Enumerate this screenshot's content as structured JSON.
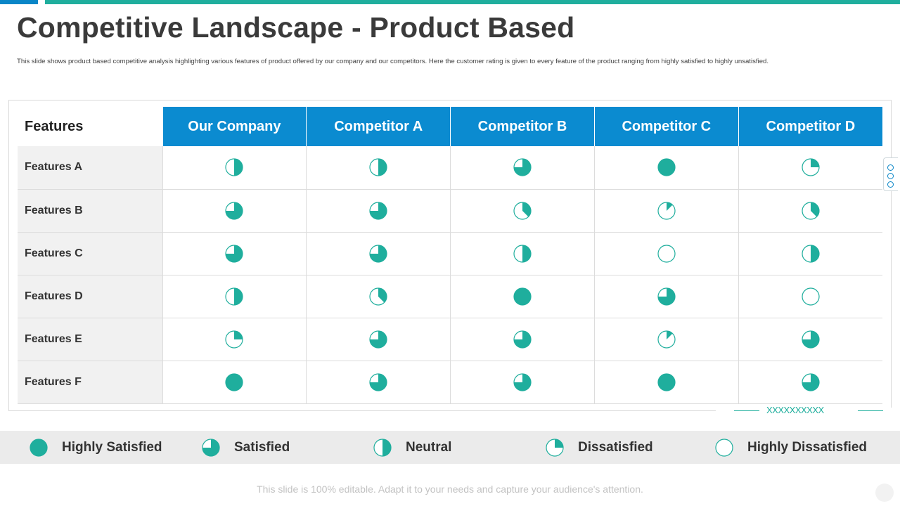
{
  "title": "Competitive Landscape - Product Based",
  "subtitle": "This slide shows product based competitive analysis highlighting  various features of product offered by our company and our competitors. Here the customer rating is given to every feature of the product ranging from highly satisfied to highly unsatisfied.",
  "table": {
    "corner_header": "Features",
    "columns": [
      "Our Company",
      "Competitor A",
      "Competitor B",
      "Competitor C",
      "Competitor D"
    ],
    "rows": [
      {
        "label": "Features A",
        "ratings": [
          0.5,
          0.5,
          0.75,
          1.0,
          0.25
        ]
      },
      {
        "label": "Features B",
        "ratings": [
          0.75,
          0.75,
          0.375,
          0.125,
          0.375
        ]
      },
      {
        "label": "Features C",
        "ratings": [
          0.75,
          0.75,
          0.5,
          0.0,
          0.5
        ]
      },
      {
        "label": "Features D",
        "ratings": [
          0.5,
          0.375,
          1.0,
          0.75,
          0.0
        ]
      },
      {
        "label": "Features E",
        "ratings": [
          0.25,
          0.75,
          0.75,
          0.125,
          0.75
        ]
      },
      {
        "label": "Features F",
        "ratings": [
          1.0,
          0.75,
          0.75,
          1.0,
          0.75
        ]
      }
    ]
  },
  "legend": [
    {
      "label": "Highly Satisfied",
      "fill": 1.0
    },
    {
      "label": "Satisfied",
      "fill": 0.75
    },
    {
      "label": "Neutral",
      "fill": 0.5
    },
    {
      "label": "Dissatisfied",
      "fill": 0.25
    },
    {
      "label": "Highly Dissatisfied",
      "fill": 0.0
    }
  ],
  "decoration_text": "XXXXXXXXXX",
  "footer": "This slide is 100% editable. Adapt it to your needs and capture your audience's attention.",
  "colors": {
    "accent": "#1fae9d",
    "header_blue": "#0b8bd0",
    "top_blue": "#0a86c7"
  }
}
